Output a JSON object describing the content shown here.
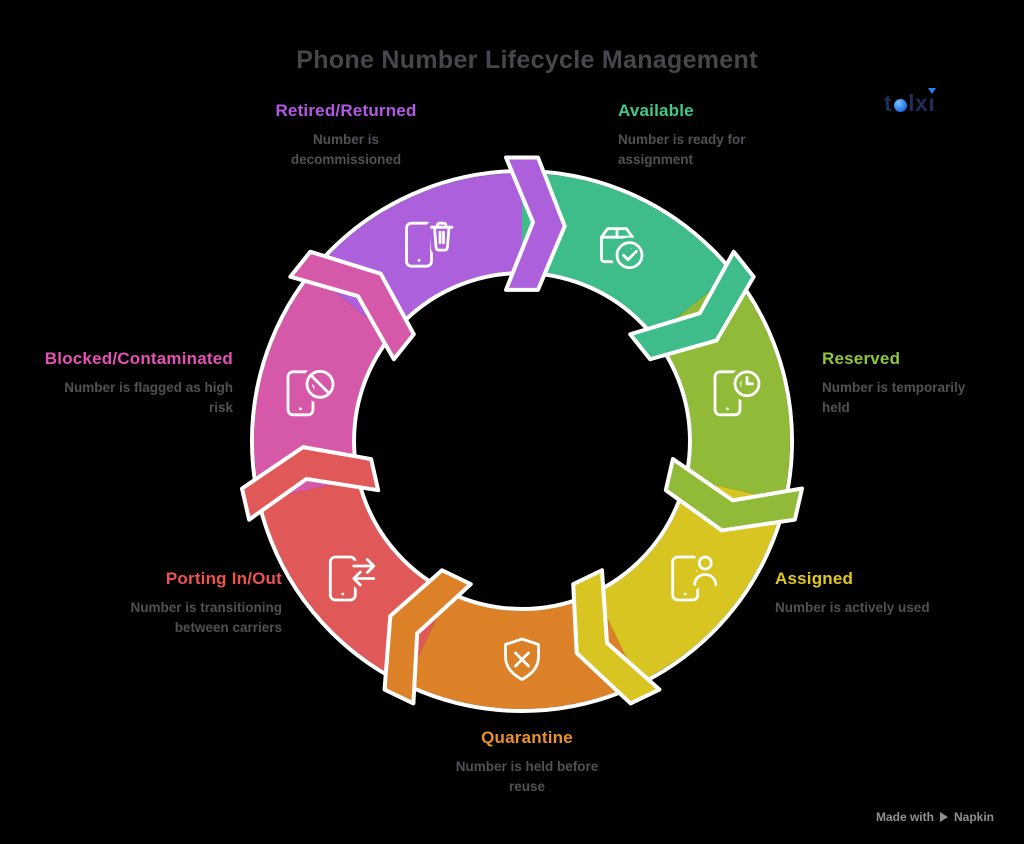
{
  "title": "Phone Number Lifecycle Management",
  "brand": {
    "name": "telxi",
    "logo_part_t": "t",
    "logo_part_lx": "lx",
    "logo_part_i": "ı",
    "text_color": "#1e2f55",
    "accent_color": "#2f7df6"
  },
  "attribution": {
    "prefix": "Made with",
    "product": "Napkin"
  },
  "outline_color": "#ffffff",
  "stages": [
    {
      "name": "Available",
      "description": "Number is ready for assignment",
      "color": "#3ebd8a",
      "label_color": "#3fc98c",
      "icon": "package-check-icon"
    },
    {
      "name": "Reserved",
      "description": "Number is temporarily held",
      "color": "#90ba38",
      "label_color": "#8dc63f",
      "icon": "phone-clock-icon"
    },
    {
      "name": "Assigned",
      "description": "Number is actively used",
      "color": "#d9c522",
      "label_color": "#e2c81c",
      "icon": "phone-user-icon"
    },
    {
      "name": "Quarantine",
      "description": "Number is held before reuse",
      "color": "#dd8128",
      "label_color": "#ec9125",
      "icon": "shield-x-icon"
    },
    {
      "name": "Porting In/Out",
      "description": "Number is transitioning between carriers",
      "color": "#e15858",
      "label_color": "#ee5253",
      "icon": "phone-swap-arrows-icon"
    },
    {
      "name": "Blocked/Contaminated",
      "description": "Number is flagged as high risk",
      "color": "#d658a9",
      "label_color": "#e650b6",
      "icon": "phone-ban-icon"
    },
    {
      "name": "Retired/Returned",
      "description": "Number is decommissioned",
      "color": "#ad60dc",
      "label_color": "#b35ae4",
      "icon": "phone-trash-icon"
    }
  ]
}
